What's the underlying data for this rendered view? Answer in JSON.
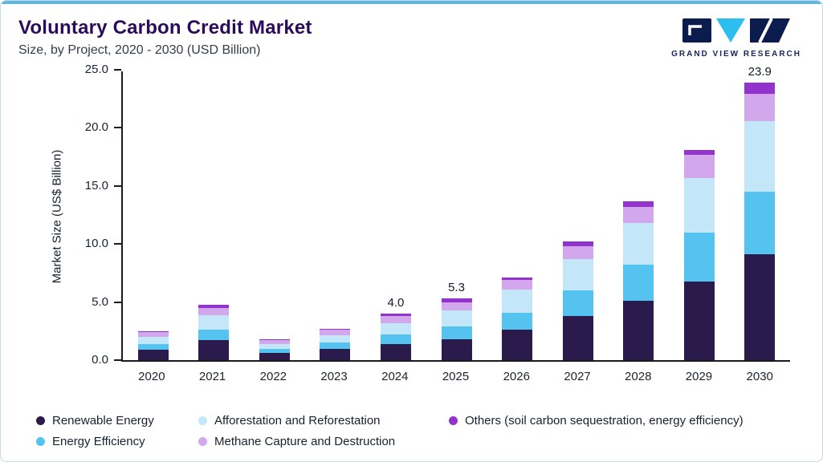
{
  "header": {
    "title": "Voluntary Carbon Credit Market",
    "subtitle": "Size, by Project, 2020 - 2030 (USD Billion)"
  },
  "logo": {
    "text": "GRAND VIEW RESEARCH"
  },
  "chart_data": {
    "type": "bar",
    "stacked": true,
    "title": "Voluntary Carbon Credit Market",
    "subtitle": "Size, by Project, 2020 - 2030 (USD Billion)",
    "xlabel": "",
    "ylabel": "Market Size (US$ Billion)",
    "ylim": [
      0,
      25
    ],
    "yticks": [
      "0.0",
      "5.0",
      "10.0",
      "15.0",
      "20.0",
      "25.0"
    ],
    "grid": false,
    "legend_position": "bottom",
    "categories": [
      "2020",
      "2021",
      "2022",
      "2023",
      "2024",
      "2025",
      "2026",
      "2027",
      "2028",
      "2029",
      "2030"
    ],
    "series": [
      {
        "name": "Renewable Energy",
        "color": "#2b1b4d",
        "values": [
          0.9,
          1.7,
          0.6,
          1.0,
          1.4,
          1.8,
          2.6,
          3.8,
          5.1,
          6.8,
          9.1
        ]
      },
      {
        "name": "Energy Efficiency",
        "color": "#55c3f0",
        "values": [
          0.5,
          0.9,
          0.35,
          0.5,
          0.8,
          1.1,
          1.5,
          2.2,
          3.1,
          4.2,
          5.4
        ]
      },
      {
        "name": "Afforestation and Reforestation",
        "color": "#c3e7f8",
        "values": [
          0.6,
          1.3,
          0.45,
          0.65,
          1.0,
          1.4,
          2.0,
          2.7,
          3.6,
          4.7,
          6.1
        ]
      },
      {
        "name": "Methane Capture and Destruction",
        "color": "#d2a7ec",
        "values": [
          0.4,
          0.6,
          0.3,
          0.45,
          0.6,
          0.7,
          0.8,
          1.1,
          1.4,
          2.0,
          2.3
        ]
      },
      {
        "name": "Others (soil carbon sequestration, energy efficiency)",
        "color": "#9233ce",
        "values": [
          0.1,
          0.3,
          0.1,
          0.1,
          0.2,
          0.3,
          0.2,
          0.4,
          0.5,
          0.4,
          1.0
        ]
      }
    ],
    "totals": [
      2.5,
      4.8,
      1.8,
      2.7,
      4.0,
      5.3,
      7.1,
      10.2,
      13.7,
      18.1,
      23.9
    ],
    "data_labels": {
      "2024": "4.0",
      "2025": "5.3",
      "2030": "23.9"
    }
  }
}
